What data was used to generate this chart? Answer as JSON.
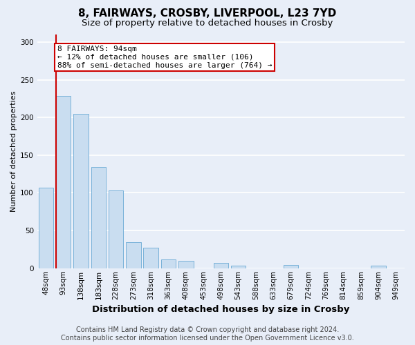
{
  "title": "8, FAIRWAYS, CROSBY, LIVERPOOL, L23 7YD",
  "subtitle": "Size of property relative to detached houses in Crosby",
  "xlabel": "Distribution of detached houses by size in Crosby",
  "ylabel": "Number of detached properties",
  "categories": [
    "48sqm",
    "93sqm",
    "138sqm",
    "183sqm",
    "228sqm",
    "273sqm",
    "318sqm",
    "363sqm",
    "408sqm",
    "453sqm",
    "498sqm",
    "543sqm",
    "588sqm",
    "633sqm",
    "679sqm",
    "724sqm",
    "769sqm",
    "814sqm",
    "859sqm",
    "904sqm",
    "949sqm"
  ],
  "values": [
    107,
    229,
    205,
    134,
    103,
    35,
    27,
    12,
    10,
    0,
    7,
    3,
    0,
    0,
    4,
    0,
    0,
    0,
    0,
    3,
    0
  ],
  "bar_color": "#c9ddf0",
  "bar_edge_color": "#6aaad4",
  "marker_line_color": "#cc0000",
  "annotation_line1": "8 FAIRWAYS: 94sqm",
  "annotation_line2": "← 12% of detached houses are smaller (106)",
  "annotation_line3": "88% of semi-detached houses are larger (764) →",
  "annotation_box_facecolor": "#ffffff",
  "annotation_box_edgecolor": "#cc0000",
  "ylim": [
    0,
    310
  ],
  "yticks": [
    0,
    50,
    100,
    150,
    200,
    250,
    300
  ],
  "footer_line1": "Contains HM Land Registry data © Crown copyright and database right 2024.",
  "footer_line2": "Contains public sector information licensed under the Open Government Licence v3.0.",
  "bg_color": "#e8eef8",
  "plot_bg_color": "#e8eef8",
  "grid_color": "#ffffff",
  "title_fontsize": 11,
  "subtitle_fontsize": 9.5,
  "xlabel_fontsize": 9.5,
  "ylabel_fontsize": 8,
  "tick_fontsize": 7.5,
  "footer_fontsize": 7,
  "annotation_fontsize": 8
}
